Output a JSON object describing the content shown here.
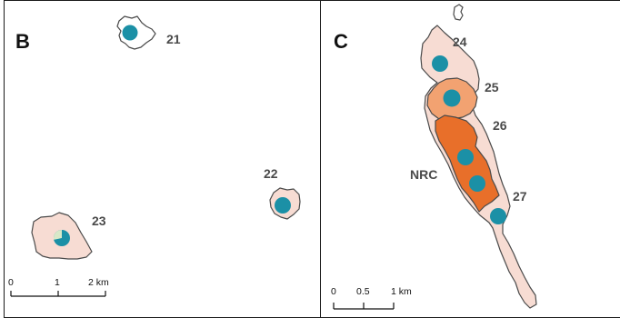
{
  "colors": {
    "light_fill": "#f7dcd3",
    "medium_fill": "#f2a271",
    "dark_fill": "#e86f2a",
    "outline": "#4a4a4a",
    "marker": "#1b90a6",
    "marker_light": "#d8e8c8"
  },
  "panel_b": {
    "letter": "B",
    "labels": {
      "r21": "21",
      "r22": "22",
      "r23": "23"
    },
    "scale": {
      "t0": "0",
      "t1": "1",
      "t2": "2 km"
    }
  },
  "panel_c": {
    "letter": "C",
    "labels": {
      "r24": "24",
      "r25": "25",
      "r26": "26",
      "nrc": "NRC",
      "r27": "27"
    },
    "scale": {
      "t0": "0",
      "t1": "0.5",
      "t2": "1 km"
    }
  }
}
